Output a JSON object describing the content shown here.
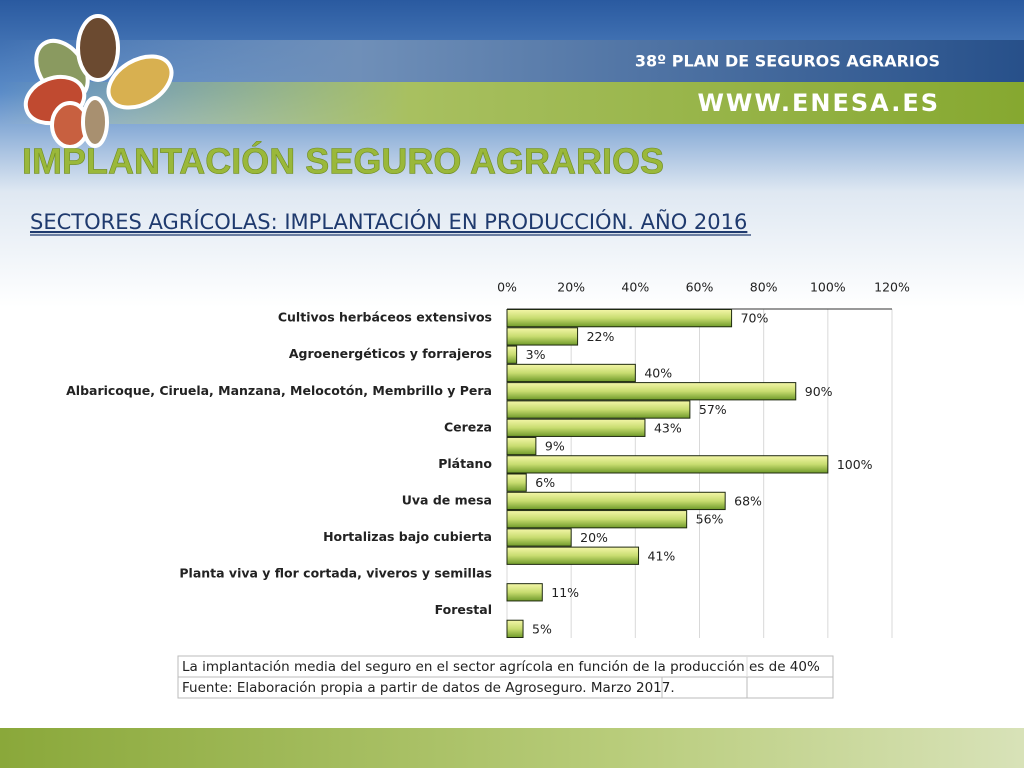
{
  "header": {
    "plan": "38º PLAN DE SEGUROS AGRARIOS",
    "website": "WWW.ENESA.ES",
    "title": "IMPLANTACIÓN SEGURO AGRARIOS",
    "subtitle": "SECTORES AGRÍCOLAS: IMPLANTACIÓN EN PRODUCCIÓN. AÑO 2016"
  },
  "chart_data": {
    "type": "hbar",
    "categories": [
      "Cultivos herbáceos extensivos",
      null,
      "Agroenergéticos y forrajeros",
      null,
      "Albaricoque, Ciruela, Manzana, Melocotón, Membrillo y Pera",
      null,
      "Cereza",
      null,
      "Plátano",
      null,
      "Uva de mesa",
      null,
      "Hortalizas bajo cubierta",
      null,
      "Planta viva y flor cortada, viveros y semillas",
      null,
      "Forestal",
      null
    ],
    "values": [
      70,
      22,
      3,
      40,
      90,
      57,
      43,
      9,
      100,
      6,
      68,
      56,
      20,
      41,
      null,
      11,
      null,
      5
    ],
    "value_labels": [
      "70%",
      "22%",
      "3%",
      "40%",
      "90%",
      "57%",
      "43%",
      "9%",
      "100%",
      "6%",
      "68%",
      "56%",
      "20%",
      "41%",
      null,
      "11%",
      null,
      "5%"
    ],
    "xlim": [
      0,
      120
    ],
    "xticks": [
      {
        "value": 0,
        "label": "0%"
      },
      {
        "value": 20,
        "label": "20%"
      },
      {
        "value": 40,
        "label": "40%"
      },
      {
        "value": 60,
        "label": "60%"
      },
      {
        "value": 80,
        "label": "80%"
      },
      {
        "value": 100,
        "label": "100%"
      },
      {
        "value": 120,
        "label": "120%"
      }
    ],
    "grid": true,
    "color": "#9bc04a"
  },
  "notes": {
    "rows": [
      "La implantación media del seguro en el sector agrícola en función de la producción es de 40%",
      "Fuente: Elaboración propia a partir de datos de Agroseguro. Marzo 2017."
    ]
  }
}
